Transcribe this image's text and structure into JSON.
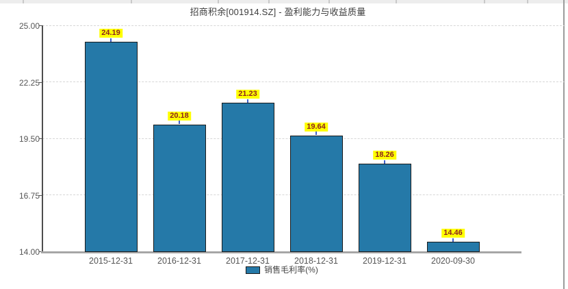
{
  "header": {
    "title": "招商积余[001914.SZ] - 盈利能力与收益质量"
  },
  "chart_data": {
    "type": "bar",
    "title": "招商积余[001914.SZ] - 盈利能力与收益质量",
    "categories": [
      "2015-12-31",
      "2016-12-31",
      "2017-12-31",
      "2018-12-31",
      "2019-12-31",
      "2020-09-30"
    ],
    "series": [
      {
        "name": "销售毛利率(%)",
        "values": [
          24.19,
          20.18,
          21.23,
          19.64,
          18.26,
          14.46
        ]
      }
    ],
    "ylim": [
      14.0,
      25.0
    ],
    "yticks": [
      {
        "label": "25.00",
        "value": 25.0
      },
      {
        "label": "22.25",
        "value": 22.25
      },
      {
        "label": "19.50",
        "value": 19.5
      },
      {
        "label": "16.75",
        "value": 16.75
      },
      {
        "label": "14.00",
        "value": 14.0
      }
    ],
    "grid": "horizontal-dashed",
    "legend_position": "bottom",
    "value_label_decimals": 2,
    "colors": {
      "bar_fill": "#2579a8",
      "bar_border": "#191919",
      "value_label_bg": "#ffff00",
      "value_label_text": "#8b1f1f",
      "connector": "#3f62c9",
      "grid_line": "#d6d6d6",
      "y_axis": "#4d4d4d",
      "x_axis": "#a6a6a6",
      "tick_text": "#555555",
      "title_text": "#3c3c3c"
    }
  },
  "legend": {
    "label": "销售毛利率(%)"
  }
}
